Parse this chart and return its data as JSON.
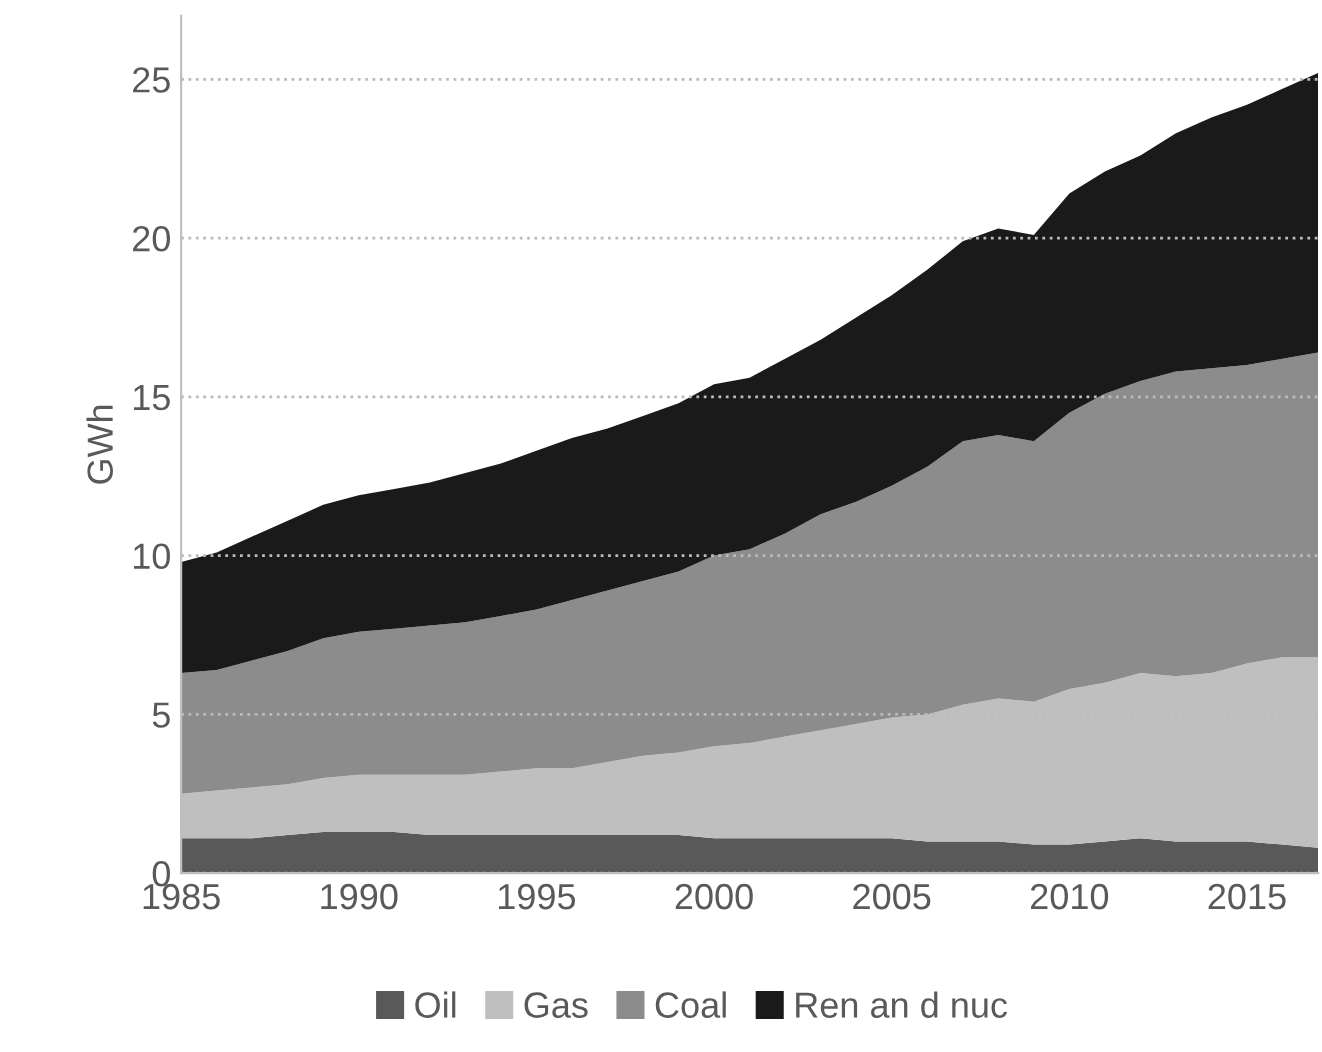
{
  "chart_data": {
    "type": "area",
    "stacked": true,
    "ylabel": "GWh",
    "x": [
      1985,
      1986,
      1987,
      1988,
      1989,
      1990,
      1991,
      1992,
      1993,
      1994,
      1995,
      1996,
      1997,
      1998,
      1999,
      2000,
      2001,
      2002,
      2003,
      2004,
      2005,
      2006,
      2007,
      2008,
      2009,
      2010,
      2011,
      2012,
      2013,
      2014,
      2015,
      2016,
      2017
    ],
    "series": [
      {
        "name": "Oil",
        "color": "#595959",
        "values": [
          1.1,
          1.1,
          1.1,
          1.2,
          1.3,
          1.3,
          1.3,
          1.2,
          1.2,
          1.2,
          1.2,
          1.2,
          1.2,
          1.2,
          1.2,
          1.1,
          1.1,
          1.1,
          1.1,
          1.1,
          1.1,
          1.0,
          1.0,
          1.0,
          0.9,
          0.9,
          1.0,
          1.1,
          1.0,
          1.0,
          1.0,
          0.9,
          0.8
        ]
      },
      {
        "name": "Gas",
        "color": "#bfbfbf",
        "values": [
          1.4,
          1.5,
          1.6,
          1.6,
          1.7,
          1.8,
          1.8,
          1.9,
          1.9,
          2.0,
          2.1,
          2.1,
          2.3,
          2.5,
          2.6,
          2.9,
          3.0,
          3.2,
          3.4,
          3.6,
          3.8,
          4.0,
          4.3,
          4.5,
          4.5,
          4.9,
          5.0,
          5.2,
          5.2,
          5.3,
          5.6,
          5.9,
          6.0
        ]
      },
      {
        "name": "Coal",
        "color": "#8c8c8c",
        "values": [
          3.8,
          3.8,
          4.0,
          4.2,
          4.4,
          4.5,
          4.6,
          4.7,
          4.8,
          4.9,
          5.0,
          5.3,
          5.4,
          5.5,
          5.7,
          6.0,
          6.1,
          6.4,
          6.8,
          7.0,
          7.3,
          7.8,
          8.3,
          8.3,
          8.2,
          8.7,
          9.1,
          9.2,
          9.6,
          9.6,
          9.4,
          9.4,
          9.6
        ]
      },
      {
        "name": "Ren an d nuc",
        "color": "#1a1a1a",
        "values": [
          3.5,
          3.7,
          3.9,
          4.1,
          4.2,
          4.3,
          4.4,
          4.5,
          4.7,
          4.8,
          5.0,
          5.1,
          5.1,
          5.2,
          5.3,
          5.4,
          5.4,
          5.5,
          5.5,
          5.8,
          6.0,
          6.2,
          6.3,
          6.5,
          6.5,
          6.9,
          7.0,
          7.1,
          7.5,
          7.9,
          8.2,
          8.5,
          8.8
        ]
      }
    ],
    "xlim": [
      1985,
      2017
    ],
    "xticks": [
      1985,
      1990,
      1995,
      2000,
      2005,
      2010,
      2015
    ],
    "ylim": [
      0,
      27
    ],
    "yticks": [
      0,
      5,
      10,
      15,
      20,
      25
    ],
    "grid": "y",
    "legend": "bottom"
  }
}
